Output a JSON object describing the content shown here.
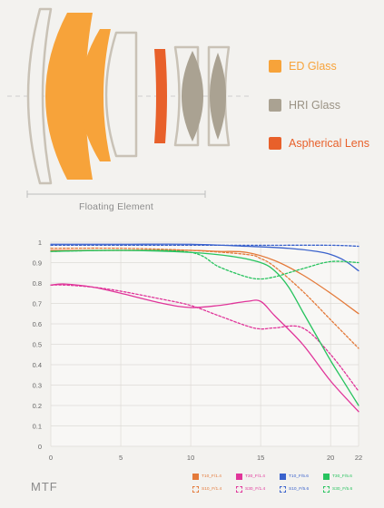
{
  "diagram": {
    "legend": [
      {
        "label": "ED Glass",
        "color": "#f7a33a"
      },
      {
        "label": "HRI Glass",
        "color": "#aaa292"
      },
      {
        "label": "Aspherical Lens",
        "color": "#e8602a"
      }
    ],
    "floating_element_label": "Floating Element"
  },
  "mtf": {
    "title": "MTF",
    "legend": [
      {
        "label": "T10_F/1.4",
        "color": "#e47a3a",
        "style": "solid"
      },
      {
        "label": "T30_F/1.4",
        "color": "#e0359a",
        "style": "solid"
      },
      {
        "label": "T10_F/5.6",
        "color": "#3a62cc",
        "style": "solid"
      },
      {
        "label": "T30_F/5.6",
        "color": "#27c35e",
        "style": "solid"
      },
      {
        "label": "S10_F/1.4",
        "color": "#e47a3a",
        "style": "dashed"
      },
      {
        "label": "S30_F/1.4",
        "color": "#e0359a",
        "style": "dashed"
      },
      {
        "label": "S10_F/5.6",
        "color": "#3a62cc",
        "style": "dashed"
      },
      {
        "label": "S30_F/5.6",
        "color": "#27c35e",
        "style": "dashed"
      }
    ]
  },
  "chart_data": {
    "type": "line",
    "title": "MTF",
    "xlabel": "",
    "ylabel": "",
    "xlim": [
      0,
      22
    ],
    "ylim": [
      0,
      1
    ],
    "x_ticks": [
      0,
      5,
      10,
      15,
      20,
      22
    ],
    "y_ticks": [
      0,
      0.1,
      0.2,
      0.3,
      0.4,
      0.5,
      0.6,
      0.7,
      0.8,
      0.9,
      1
    ],
    "y_tick_labels": [
      "0",
      "0.1",
      "0.2",
      "0.3",
      "0.4",
      "0.5",
      "0.6",
      "0.7",
      "0.8",
      "0.9",
      "1"
    ],
    "grid": true,
    "legend_position": "bottom-right",
    "series": [
      {
        "name": "T10_F/1.4",
        "color": "#e47a3a",
        "dashed": false,
        "x": [
          0,
          5,
          10,
          12,
          14,
          16,
          18,
          20,
          22
        ],
        "y": [
          0.96,
          0.96,
          0.96,
          0.955,
          0.95,
          0.91,
          0.84,
          0.75,
          0.65
        ]
      },
      {
        "name": "S10_F/1.4",
        "color": "#e47a3a",
        "dashed": true,
        "x": [
          0,
          5,
          10,
          14,
          15,
          16,
          18,
          20,
          22
        ],
        "y": [
          0.97,
          0.97,
          0.96,
          0.94,
          0.92,
          0.88,
          0.76,
          0.62,
          0.48
        ]
      },
      {
        "name": "T30_F/1.4",
        "color": "#e0359a",
        "dashed": false,
        "x": [
          0,
          1,
          3,
          5,
          8,
          10,
          12,
          14,
          15,
          16,
          18,
          20,
          22
        ],
        "y": [
          0.79,
          0.795,
          0.78,
          0.75,
          0.7,
          0.68,
          0.69,
          0.71,
          0.71,
          0.64,
          0.5,
          0.32,
          0.17
        ]
      },
      {
        "name": "S30_F/1.4",
        "color": "#e0359a",
        "dashed": true,
        "x": [
          0,
          1,
          3,
          5,
          8,
          10,
          12,
          14,
          15,
          16,
          18,
          20,
          22
        ],
        "y": [
          0.79,
          0.79,
          0.78,
          0.76,
          0.72,
          0.69,
          0.64,
          0.59,
          0.575,
          0.58,
          0.58,
          0.45,
          0.27
        ]
      },
      {
        "name": "T10_F/5.6",
        "color": "#3a62cc",
        "dashed": false,
        "x": [
          0,
          5,
          10,
          14,
          17,
          19,
          20,
          21,
          22
        ],
        "y": [
          0.99,
          0.99,
          0.99,
          0.98,
          0.97,
          0.955,
          0.94,
          0.91,
          0.86
        ]
      },
      {
        "name": "S10_F/5.6",
        "color": "#3a62cc",
        "dashed": true,
        "x": [
          0,
          5,
          10,
          15,
          20,
          22
        ],
        "y": [
          0.985,
          0.985,
          0.985,
          0.985,
          0.985,
          0.98
        ]
      },
      {
        "name": "T30_F/5.6",
        "color": "#27c35e",
        "dashed": false,
        "x": [
          0,
          5,
          10,
          13,
          15,
          16,
          17,
          18,
          19,
          20,
          21,
          22
        ],
        "y": [
          0.955,
          0.96,
          0.95,
          0.93,
          0.9,
          0.86,
          0.78,
          0.66,
          0.54,
          0.42,
          0.31,
          0.2
        ]
      },
      {
        "name": "S30_F/5.6",
        "color": "#27c35e",
        "dashed": true,
        "x": [
          0,
          5,
          10,
          12,
          14,
          15,
          16,
          17,
          18,
          20,
          22
        ],
        "y": [
          0.955,
          0.96,
          0.95,
          0.88,
          0.83,
          0.82,
          0.83,
          0.85,
          0.87,
          0.905,
          0.9
        ]
      }
    ]
  }
}
